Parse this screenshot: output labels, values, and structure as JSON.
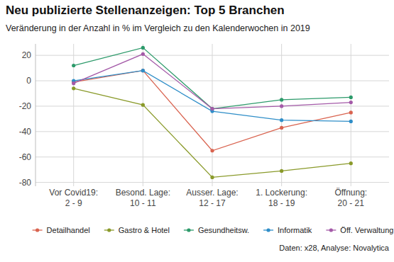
{
  "chart_data": {
    "type": "line",
    "title": "Neu publizierte Stellenanzeigen: Top 5 Branchen",
    "subtitle": "Veränderung in der Anzahl in % im Vergleich zu den Kalenderwochen in 2019",
    "categories": [
      "Vor Covid19:\n2 - 9",
      "Besond. Lage:\n10 - 11",
      "Ausser. Lage:\n12 - 17",
      "1. Lockerung:\n18 - 19",
      "Öffnung:\n20 - 21"
    ],
    "series": [
      {
        "name": "Detailhandel",
        "color": "#d9634f",
        "values": [
          -1,
          8,
          -55,
          -37,
          -25
        ]
      },
      {
        "name": "Gastro & Hotel",
        "color": "#8a9a2a",
        "values": [
          -6,
          -19,
          -76,
          -71,
          -65
        ]
      },
      {
        "name": "Gesundheitsw.",
        "color": "#2c9a6a",
        "values": [
          12,
          26,
          -22,
          -15,
          -13
        ]
      },
      {
        "name": "Informatik",
        "color": "#2f8ec8",
        "values": [
          0,
          8,
          -24,
          -31,
          -32
        ]
      },
      {
        "name": "Öff. Verwaltung",
        "color": "#a45aa8",
        "values": [
          -2,
          21,
          -22,
          -20,
          -17
        ]
      }
    ],
    "ylim": [
      -83,
      29
    ],
    "yticks": [
      -80,
      -60,
      -40,
      -20,
      0,
      20
    ],
    "grid": true,
    "legend": "bottom",
    "marker": "circle",
    "source": "Daten: x28, Analyse: Novalytica"
  }
}
